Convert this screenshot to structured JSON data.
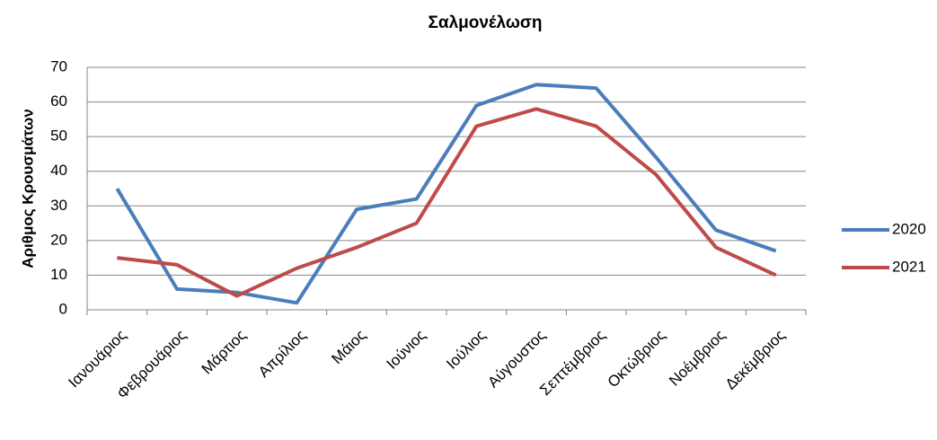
{
  "chart_data": {
    "type": "line",
    "title": "Σαλμονέλωση",
    "y_label": "Αριθμος Κρουσμάτων",
    "categories": [
      "Ιανουάριος",
      "Φεβρουάριος",
      "Μάρτιος",
      "Απρίλιος",
      "Μάιος",
      "Ιούνιος",
      "Ιούλιος",
      "Αύγουστος",
      "Σεπτέμβριος",
      "Οκτώβριος",
      "Νοέμβριος",
      "Δεκέμβριος"
    ],
    "series": [
      {
        "name": "2020",
        "color": "#4a7ebb",
        "values": [
          35,
          6,
          5,
          2,
          29,
          32,
          59,
          65,
          64,
          44,
          23,
          17
        ]
      },
      {
        "name": "2021",
        "color": "#be4b48",
        "values": [
          15,
          13,
          4,
          12,
          18,
          25,
          53,
          58,
          53,
          39,
          18,
          10
        ]
      }
    ],
    "ylim": [
      0,
      70
    ],
    "yticks": [
      0,
      10,
      20,
      30,
      40,
      50,
      60,
      70
    ],
    "grid": true,
    "legend": "right"
  }
}
